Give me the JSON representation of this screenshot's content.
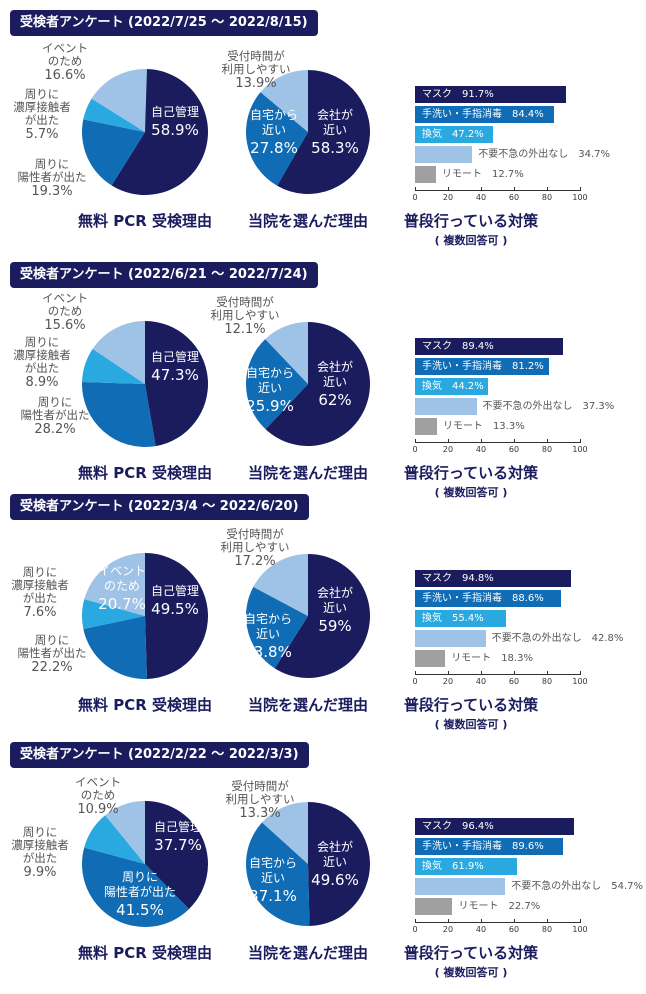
{
  "colors": {
    "navy": "#1b1c5e",
    "blue": "#0f6cb5",
    "cyan": "#2aa8e0",
    "light": "#9fc3e6",
    "gray": "#a0a0a0"
  },
  "titles": {
    "pie1": "無料 PCR 受検理由",
    "pie2": "当院を選んだ理由",
    "bar": "普段行っている対策",
    "bar_sub": "( 複数回答可 )"
  },
  "axis_ticks": [
    "0",
    "20",
    "40",
    "60",
    "80",
    "100"
  ],
  "chart_data": [
    {
      "header": "受検者アンケート (2022/7/25 〜 2022/8/15)",
      "pie1": [
        {
          "label": "自己管理",
          "value": 58.9,
          "text": "58.9%"
        },
        {
          "label": "周りに\n陽性者が出た",
          "value": 19.3,
          "text": "19.3%"
        },
        {
          "label": "周りに\n濃厚接触者\nが出た",
          "value": 5.7,
          "text": "5.7%"
        },
        {
          "label": "イベント\nのため",
          "value": 16.6,
          "text": "16.6%"
        }
      ],
      "pie2": [
        {
          "label": "会社が\n近い",
          "value": 58.3,
          "text": "58.3%"
        },
        {
          "label": "自宅から\n近い",
          "value": 27.8,
          "text": "27.8%"
        },
        {
          "label": "受付時間が\n利用しやすい",
          "value": 13.9,
          "text": "13.9%"
        }
      ],
      "bars": [
        {
          "label": "マスク",
          "value": 91.7,
          "text": "91.7%"
        },
        {
          "label": "手洗い・手指消毒",
          "value": 84.4,
          "text": "84.4%"
        },
        {
          "label": "換気",
          "value": 47.2,
          "text": "47.2%"
        },
        {
          "label": "不要不急の外出なし",
          "value": 34.7,
          "text": "34.7%"
        },
        {
          "label": "リモート",
          "value": 12.7,
          "text": "12.7%"
        }
      ]
    },
    {
      "header": "受検者アンケート (2022/6/21 〜 2022/7/24)",
      "pie1": [
        {
          "label": "自己管理",
          "value": 47.3,
          "text": "47.3%"
        },
        {
          "label": "周りに\n陽性者が出た",
          "value": 28.2,
          "text": "28.2%"
        },
        {
          "label": "周りに\n濃厚接触者\nが出た",
          "value": 8.9,
          "text": "8.9%"
        },
        {
          "label": "イベント\nのため",
          "value": 15.6,
          "text": "15.6%"
        }
      ],
      "pie2": [
        {
          "label": "会社が\n近い",
          "value": 62,
          "text": "62%"
        },
        {
          "label": "自宅から\n近い",
          "value": 25.9,
          "text": "25.9%"
        },
        {
          "label": "受付時間が\n利用しやすい",
          "value": 12.1,
          "text": "12.1%"
        }
      ],
      "bars": [
        {
          "label": "マスク",
          "value": 89.4,
          "text": "89.4%"
        },
        {
          "label": "手洗い・手指消毒",
          "value": 81.2,
          "text": "81.2%"
        },
        {
          "label": "換気",
          "value": 44.2,
          "text": "44.2%"
        },
        {
          "label": "不要不急の外出なし",
          "value": 37.3,
          "text": "37.3%"
        },
        {
          "label": "リモート",
          "value": 13.3,
          "text": "13.3%"
        }
      ]
    },
    {
      "header": "受検者アンケート (2022/3/4 〜 2022/6/20)",
      "pie1": [
        {
          "label": "自己管理",
          "value": 49.5,
          "text": "49.5%"
        },
        {
          "label": "周りに\n陽性者が出た",
          "value": 22.2,
          "text": "22.2%"
        },
        {
          "label": "周りに\n濃厚接触者\nが出た",
          "value": 7.6,
          "text": "7.6%"
        },
        {
          "label": "イベント\nのため",
          "value": 20.7,
          "text": "20.7%"
        }
      ],
      "pie2": [
        {
          "label": "会社が\n近い",
          "value": 59,
          "text": "59%"
        },
        {
          "label": "自宅から\n近い",
          "value": 23.8,
          "text": "23.8%"
        },
        {
          "label": "受付時間が\n利用しやすい",
          "value": 17.2,
          "text": "17.2%"
        }
      ],
      "bars": [
        {
          "label": "マスク",
          "value": 94.8,
          "text": "94.8%"
        },
        {
          "label": "手洗い・手指消毒",
          "value": 88.6,
          "text": "88.6%"
        },
        {
          "label": "換気",
          "value": 55.4,
          "text": "55.4%"
        },
        {
          "label": "不要不急の外出なし",
          "value": 42.8,
          "text": "42.8%"
        },
        {
          "label": "リモート",
          "value": 18.3,
          "text": "18.3%"
        }
      ]
    },
    {
      "header": "受検者アンケート (2022/2/22 〜 2022/3/3)",
      "pie1": [
        {
          "label": "自己管理",
          "value": 37.7,
          "text": "37.7%"
        },
        {
          "label": "周りに\n陽性者が出た",
          "value": 41.5,
          "text": "41.5%"
        },
        {
          "label": "周りに\n濃厚接触者\nが出た",
          "value": 9.9,
          "text": "9.9%"
        },
        {
          "label": "イベント\nのため",
          "value": 10.9,
          "text": "10.9%"
        }
      ],
      "pie2": [
        {
          "label": "会社が\n近い",
          "value": 49.6,
          "text": "49.6%"
        },
        {
          "label": "自宅から\n近い",
          "value": 37.1,
          "text": "37.1%"
        },
        {
          "label": "受付時間が\n利用しやすい",
          "value": 13.3,
          "text": "13.3%"
        }
      ],
      "bars": [
        {
          "label": "マスク",
          "value": 96.4,
          "text": "96.4%"
        },
        {
          "label": "手洗い・手指消毒",
          "value": 89.6,
          "text": "89.6%"
        },
        {
          "label": "換気",
          "value": 61.9,
          "text": "61.9%"
        },
        {
          "label": "不要不急の外出なし",
          "value": 54.7,
          "text": "54.7%"
        },
        {
          "label": "リモート",
          "value": 22.7,
          "text": "22.7%"
        }
      ]
    }
  ]
}
